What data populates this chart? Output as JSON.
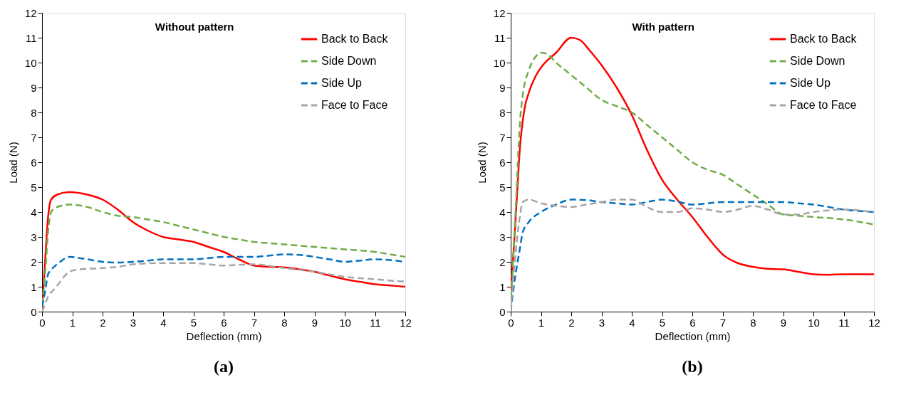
{
  "chart_data": [
    {
      "type": "line",
      "title": "Without pattern",
      "xlabel": "Deflection (mm)",
      "ylabel": "Load (N)",
      "annotations": [
        "(a)"
      ],
      "legend": "top right",
      "xlim": [
        0,
        12
      ],
      "ylim": [
        0,
        12
      ],
      "xticks": [
        0,
        1,
        2,
        3,
        4,
        5,
        6,
        7,
        8,
        9,
        10,
        11,
        12
      ],
      "yticks": [
        0,
        1,
        2,
        3,
        4,
        5,
        6,
        7,
        8,
        9,
        10,
        11,
        12
      ],
      "series": [
        {
          "name": "Back to Back",
          "color": "#ff0000",
          "line_style": "solid",
          "x": [
            0,
            0.1,
            0.2,
            0.3,
            0.5,
            0.9,
            1.5,
            2,
            2.5,
            3,
            3.5,
            4,
            4.5,
            5,
            5.5,
            6,
            6.5,
            7,
            7.5,
            8,
            8.5,
            9,
            9.5,
            10,
            10.5,
            11,
            11.5,
            12
          ],
          "values": [
            0,
            2,
            3.8,
            4.5,
            4.7,
            4.8,
            4.7,
            4.5,
            4.1,
            3.6,
            3.25,
            3.0,
            2.9,
            2.8,
            2.6,
            2.4,
            2.1,
            1.85,
            1.8,
            1.78,
            1.7,
            1.6,
            1.45,
            1.3,
            1.2,
            1.1,
            1.05,
            1.0
          ]
        },
        {
          "name": "Side Down",
          "color": "#70ad47",
          "line_style": "dashed",
          "x": [
            0,
            0.1,
            0.2,
            0.3,
            0.5,
            0.9,
            1.5,
            2,
            2.5,
            3,
            3.5,
            4,
            4.5,
            5,
            5.5,
            6,
            6.5,
            7,
            7.5,
            8,
            9,
            10,
            11,
            11.5,
            12
          ],
          "values": [
            0.3,
            1.5,
            3.2,
            4.0,
            4.2,
            4.3,
            4.2,
            4.0,
            3.85,
            3.8,
            3.7,
            3.6,
            3.45,
            3.3,
            3.15,
            3.0,
            2.9,
            2.8,
            2.75,
            2.7,
            2.6,
            2.5,
            2.4,
            2.3,
            2.2
          ]
        },
        {
          "name": "Side Up",
          "color": "#0070c0",
          "line_style": "dashed",
          "x": [
            0,
            0.1,
            0.2,
            0.4,
            0.6,
            0.9,
            1.5,
            2,
            2.5,
            3,
            3.5,
            4,
            5,
            5.5,
            6,
            7,
            7.5,
            8,
            8.5,
            9,
            9.5,
            10,
            10.5,
            11,
            11.5,
            12
          ],
          "values": [
            0.2,
            0.8,
            1.5,
            1.8,
            2.0,
            2.2,
            2.1,
            2.0,
            1.97,
            2.0,
            2.05,
            2.1,
            2.1,
            2.15,
            2.2,
            2.2,
            2.25,
            2.3,
            2.28,
            2.2,
            2.1,
            2.0,
            2.05,
            2.1,
            2.07,
            2.0
          ]
        },
        {
          "name": "Face to Face",
          "color": "#a5a5a5",
          "line_style": "dashed",
          "x": [
            0,
            0.1,
            0.2,
            0.4,
            0.6,
            0.8,
            1,
            1.5,
            2,
            2.5,
            3,
            4,
            5,
            5.5,
            6,
            6.5,
            7,
            8,
            9,
            10,
            11,
            12
          ],
          "values": [
            0,
            0.3,
            0.6,
            0.9,
            1.2,
            1.5,
            1.65,
            1.72,
            1.75,
            1.8,
            1.9,
            1.95,
            1.95,
            1.9,
            1.85,
            1.88,
            1.9,
            1.75,
            1.6,
            1.4,
            1.3,
            1.2
          ]
        }
      ]
    },
    {
      "type": "line",
      "title": "With pattern",
      "xlabel": "Deflection (mm)",
      "ylabel": "Load (N)",
      "annotations": [
        "(b)"
      ],
      "legend": "top right",
      "xlim": [
        0,
        12
      ],
      "ylim": [
        0,
        12
      ],
      "xticks": [
        0,
        1,
        2,
        3,
        4,
        5,
        6,
        7,
        8,
        9,
        10,
        11,
        12
      ],
      "yticks": [
        0,
        1,
        2,
        3,
        4,
        5,
        6,
        7,
        8,
        9,
        10,
        11,
        12
      ],
      "series": [
        {
          "name": "Back to Back",
          "color": "#ff0000",
          "line_style": "solid",
          "x": [
            0,
            0.1,
            0.2,
            0.3,
            0.45,
            0.6,
            0.8,
            1,
            1.5,
            2,
            2.3,
            2.6,
            3,
            3.5,
            4,
            4.5,
            5,
            5.5,
            6,
            6.5,
            7,
            7.5,
            8,
            8.5,
            9,
            9.5,
            10,
            10.5,
            11,
            12
          ],
          "values": [
            0.8,
            2.5,
            4.5,
            6.5,
            8.1,
            8.8,
            9.4,
            9.8,
            10.4,
            11.0,
            10.9,
            10.5,
            9.9,
            9.0,
            7.9,
            6.5,
            5.3,
            4.5,
            3.8,
            3.0,
            2.3,
            1.95,
            1.8,
            1.72,
            1.7,
            1.6,
            1.5,
            1.48,
            1.5,
            1.5
          ]
        },
        {
          "name": "Side Down",
          "color": "#70ad47",
          "line_style": "dashed",
          "x": [
            0,
            0.1,
            0.2,
            0.3,
            0.4,
            0.6,
            0.8,
            1,
            1.2,
            1.5,
            2,
            2.5,
            3,
            3.5,
            4,
            4.5,
            5,
            5.5,
            6,
            6.5,
            7,
            7.5,
            8,
            8.5,
            9,
            9.5,
            10,
            11,
            12
          ],
          "values": [
            0.2,
            2.5,
            5,
            7.5,
            8.7,
            9.7,
            10.2,
            10.4,
            10.35,
            10.0,
            9.5,
            9.0,
            8.5,
            8.25,
            8.0,
            7.5,
            7.0,
            6.5,
            6.0,
            5.7,
            5.5,
            5.1,
            4.7,
            4.3,
            3.9,
            3.85,
            3.8,
            3.7,
            3.5
          ]
        },
        {
          "name": "Side Up",
          "color": "#0070c0",
          "line_style": "dashed",
          "x": [
            0,
            0.1,
            0.2,
            0.3,
            0.4,
            0.6,
            1,
            1.5,
            2,
            2.5,
            3,
            3.5,
            4,
            4.5,
            5,
            5.5,
            6,
            6.5,
            7,
            8,
            9,
            9.5,
            10,
            11,
            12
          ],
          "values": [
            0,
            1.0,
            1.8,
            2.5,
            3.2,
            3.6,
            4.0,
            4.3,
            4.5,
            4.48,
            4.4,
            4.35,
            4.3,
            4.4,
            4.5,
            4.42,
            4.3,
            4.35,
            4.4,
            4.4,
            4.4,
            4.35,
            4.3,
            4.1,
            4.0
          ]
        },
        {
          "name": "Face to Face",
          "color": "#a5a5a5",
          "line_style": "dashed",
          "x": [
            0,
            0.1,
            0.2,
            0.3,
            0.4,
            0.6,
            1,
            1.5,
            2,
            2.5,
            3,
            3.5,
            4,
            4.5,
            5,
            5.5,
            6,
            6.5,
            7,
            7.5,
            8,
            8.5,
            9,
            9.5,
            10,
            11,
            12
          ],
          "values": [
            0,
            1.5,
            2.8,
            3.8,
            4.4,
            4.5,
            4.35,
            4.25,
            4.2,
            4.3,
            4.4,
            4.5,
            4.5,
            4.2,
            4.0,
            4.0,
            4.15,
            4.1,
            4.0,
            4.1,
            4.25,
            4.1,
            3.9,
            3.9,
            4.0,
            4.1,
            4.0
          ]
        }
      ]
    }
  ]
}
